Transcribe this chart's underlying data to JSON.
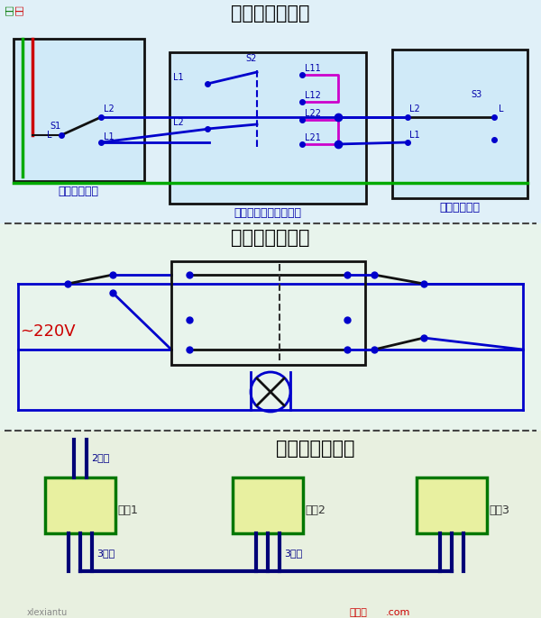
{
  "title1": "三控开关接线图",
  "title2": "三控开关原理图",
  "title3": "三控开关布线图",
  "label_left_switch": "单开双控开关",
  "label_mid_switch": "中途开关（三控开关）",
  "label_right_switch": "单开双控开关",
  "label_voltage": "~220V",
  "label_2wire": "2根线",
  "label_3wire1": "3根线",
  "label_3wire2": "3根线",
  "label_sw1": "开关1",
  "label_sw2": "开关2",
  "label_sw3": "开关3",
  "bg_color": "#ddeeff",
  "grid_color": "#b8ccd8",
  "box_fill": "#d0eaf8",
  "box_border": "#111111",
  "green_line": "#00aa00",
  "red_line": "#cc0000",
  "blue_line": "#0000cc",
  "magenta_line": "#cc00cc",
  "title_color": "#000000",
  "label_color": "#0000aa",
  "switch_box_fill": "#e8f0a0",
  "switch_box_border": "#007700",
  "sect1_bg": "#e0f0f8",
  "sect2_bg": "#e8f4ec",
  "sect3_bg": "#e8f0e0"
}
